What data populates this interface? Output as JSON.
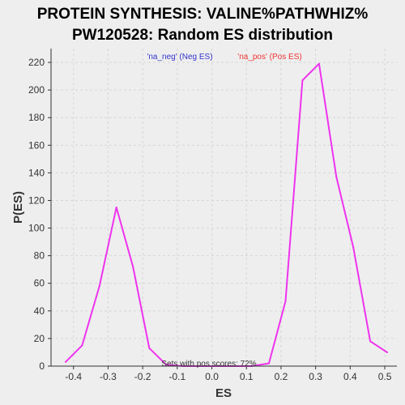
{
  "chart_data": {
    "type": "line",
    "title_line1": "PROTEIN SYNTHESIS: VALINE%PATHWHIZ%",
    "title_line2": "PW120528: Random ES distribution",
    "xlabel": "ES",
    "ylabel": "P(ES)",
    "xlim": [
      -0.465,
      0.535
    ],
    "ylim": [
      0,
      230
    ],
    "xticks": [
      -0.4,
      -0.3,
      -0.2,
      -0.1,
      0.0,
      0.1,
      0.2,
      0.3,
      0.4,
      0.5
    ],
    "xtick_labels": [
      "-0.4",
      "-0.3",
      "-0.2",
      "-0.1",
      "0.0",
      "0.1",
      "0.2",
      "0.3",
      "0.4",
      "0.5"
    ],
    "yticks": [
      0,
      20,
      40,
      60,
      80,
      100,
      120,
      140,
      160,
      180,
      200,
      220
    ],
    "ytick_labels": [
      "0",
      "20",
      "40",
      "60",
      "80",
      "100",
      "120",
      "140",
      "160",
      "180",
      "200",
      "220"
    ],
    "grid": true,
    "legend": [
      {
        "label": "'na_neg' (Neg ES)",
        "color": "#3333cc"
      },
      {
        "label": "'na_pos' (Pos ES)",
        "color": "#ee3333"
      }
    ],
    "series": [
      {
        "name": "random ES",
        "color": "#ee33ee",
        "x": [
          -0.423,
          -0.375,
          -0.325,
          -0.276,
          -0.228,
          -0.181,
          -0.132,
          -0.083,
          0.067,
          0.115,
          0.165,
          0.213,
          0.262,
          0.31,
          0.36,
          0.409,
          0.458,
          0.507
        ],
        "y": [
          3,
          15,
          58,
          115,
          72,
          13,
          1,
          0,
          0,
          0,
          2,
          47,
          207,
          219,
          137,
          86,
          18,
          10
        ]
      }
    ],
    "annotation": "Sets with pos scores: 72%"
  }
}
